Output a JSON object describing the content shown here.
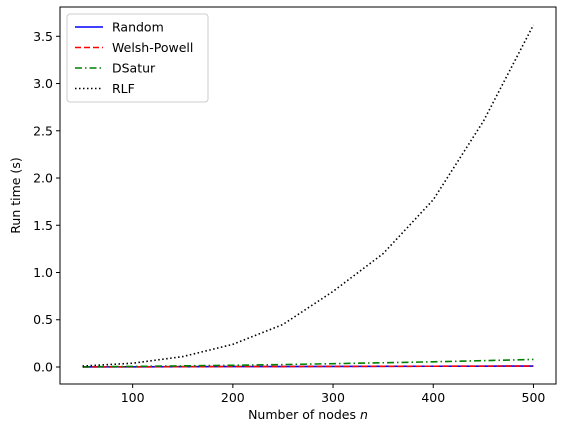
{
  "chart_data": {
    "type": "line",
    "title": "",
    "xlabel": "Number of nodes",
    "xlabel_var": "n",
    "ylabel": "Run time (s)",
    "xlim": [
      27.5,
      522.5
    ],
    "ylim": [
      -0.18,
      3.81
    ],
    "x_ticks": [
      100,
      200,
      300,
      400,
      500
    ],
    "x_tick_labels": [
      "100",
      "200",
      "300",
      "400",
      "500"
    ],
    "y_ticks": [
      0.0,
      0.5,
      1.0,
      1.5,
      2.0,
      2.5,
      3.0,
      3.5
    ],
    "y_tick_labels": [
      "0.0",
      "0.5",
      "1.0",
      "1.5",
      "2.0",
      "2.5",
      "3.0",
      "3.5"
    ],
    "grid": false,
    "legend_position": "top-left",
    "x": [
      50,
      100,
      150,
      200,
      250,
      300,
      350,
      400,
      450,
      500
    ],
    "series": [
      {
        "name": "Random",
        "color": "#0000ff",
        "dash": "solid",
        "values": [
          0.001,
          0.002,
          0.003,
          0.004,
          0.005,
          0.006,
          0.007,
          0.008,
          0.009,
          0.01
        ]
      },
      {
        "name": "Welsh-Powell",
        "color": "#ff0000",
        "dash": "dashed",
        "values": [
          0.001,
          0.002,
          0.003,
          0.004,
          0.005,
          0.006,
          0.007,
          0.008,
          0.009,
          0.01
        ]
      },
      {
        "name": "DSatur",
        "color": "#008000",
        "dash": "dashdot",
        "values": [
          0.002,
          0.006,
          0.012,
          0.018,
          0.026,
          0.035,
          0.045,
          0.055,
          0.067,
          0.08
        ]
      },
      {
        "name": "RLF",
        "color": "#000000",
        "dash": "dotted",
        "values": [
          0.01,
          0.04,
          0.11,
          0.24,
          0.45,
          0.8,
          1.2,
          1.77,
          2.6,
          3.62
        ]
      }
    ]
  }
}
